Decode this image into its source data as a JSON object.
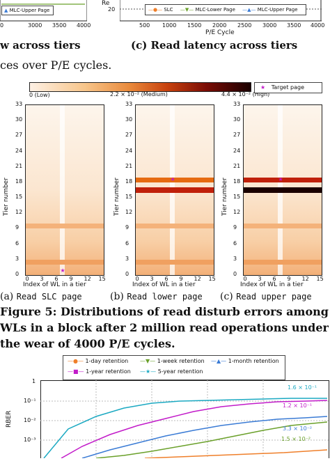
{
  "top_left": {
    "ytick_partial": "",
    "xticks": [
      "3000",
      "3500",
      "4000"
    ],
    "xtick_left": "0",
    "legend_item": "MLC-Upper Page",
    "caption_tail": "w across tiers"
  },
  "top_right": {
    "ylabel_partial": "Re",
    "ytick": "20",
    "xticks": [
      "500",
      "1000",
      "1500",
      "2000",
      "2500",
      "3000",
      "3500",
      "4000"
    ],
    "xlabel": "P/E Cycle",
    "legend": [
      "SLC",
      "MLC-Lower Page",
      "MLC-Upper Page"
    ],
    "caption": "(c) Read latency across tiers"
  },
  "figure4_tail": "ces over P/E cycles.",
  "heatmap": {
    "colorbar_labels": [
      "0 (Low)",
      "2.2 × 10⁻² (Medium)",
      "4.4 × 10⁻² (High)"
    ],
    "target_legend": "Target page",
    "ylabel": "Tier number",
    "xlabel": "Index of WL in a tier",
    "yticks": [
      "33",
      "30",
      "27",
      "24",
      "21",
      "18",
      "15",
      "12",
      "9",
      "6",
      "3",
      "0"
    ],
    "xticks": [
      "0",
      "3",
      "6",
      "9",
      "12",
      "15"
    ],
    "colors": {
      "low": "#fdf0e4",
      "mid": "#f4a460",
      "high": "#e66a10",
      "dark": "#1a0000",
      "red": "#c0200a"
    },
    "subcaps": [
      {
        "label": "(a) ",
        "text": "Read SLC page"
      },
      {
        "label": "(b) ",
        "text": "Read lower page"
      },
      {
        "label": "(c) ",
        "text": "Read upper page"
      }
    ]
  },
  "figure5": {
    "line1": "Figure 5: Distributions of read disturb errors among",
    "line2": "WLs in a block after 2 million read operations under",
    "line3": "the wear of 4000 P/E cycles."
  },
  "rber_chart": {
    "ylabel": "RBER",
    "yticks": [
      "1",
      "10⁻¹",
      "10⁻²",
      "10⁻³"
    ],
    "legend": [
      "1-day retention",
      "1-week retention",
      "1-month retention",
      "1-year retention",
      "5-year retention"
    ],
    "annotations": [
      "1.6 × 10⁻¹",
      "1.2 × 10⁻¹",
      "3.3 × 10⁻²",
      "1.5 × 10⁻²"
    ],
    "colors": [
      "#ef7f2a",
      "#6aa02a",
      "#3a7bd5",
      "#c21bc9",
      "#1ba9c2"
    ]
  }
}
